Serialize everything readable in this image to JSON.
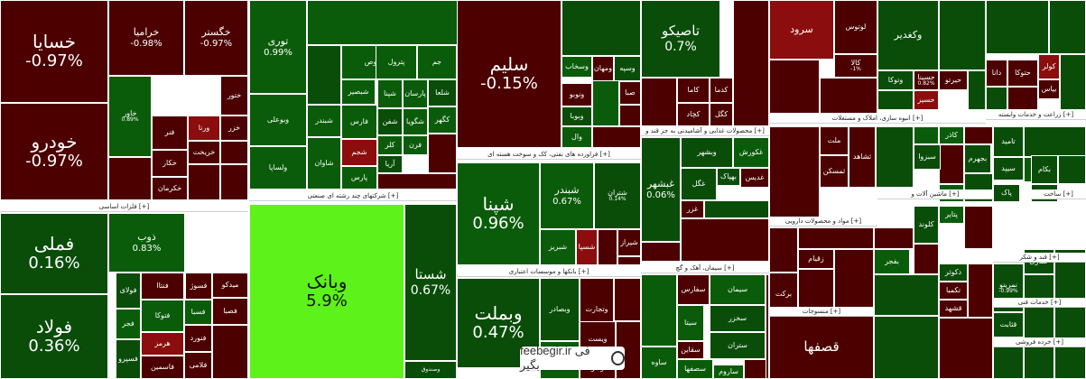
{
  "colors": {
    "deep_red": "#4c0000",
    "red": "#6b0d0d",
    "bright_red": "#8b0d0d",
    "green": "#0a5c0a",
    "dark_green": "#094d09",
    "bright_green": "#5cf21a"
  },
  "sectors": [
    {
      "label": "فلزات اساسی [+]"
    },
    {
      "label": "شرکتهای چند رشته ای صنعتی [+]"
    },
    {
      "label": "فراورده های نفتی، کک و سوخت هسته ای [+]"
    },
    {
      "label": "بانکها و موسسات اعتباری [+]"
    },
    {
      "label": "محصولات غذایی و آشامیدنی به جز قند و [+]"
    },
    {
      "label": "سیمان، آهک و گچ [+]"
    },
    {
      "label": "سایر [+]"
    },
    {
      "label": "انبوه سازی، املاک و مستغلات [+]"
    },
    {
      "label": "زراعت و خدمات وابسته [+]"
    },
    {
      "label": "مواد و محصولات دارویی [+]"
    },
    {
      "label": "ماشین آلات و [+]"
    },
    {
      "label": "قند و شکر [+]"
    },
    {
      "label": "منسوجات [+]"
    },
    {
      "label": "خدمات فنی [+]"
    },
    {
      "label": "خرده فروشی [+]"
    },
    {
      "label": "ساخت [+]"
    }
  ],
  "tiles": [
    {
      "name": "خسایا",
      "change": "-0.97%"
    },
    {
      "name": "خودرو",
      "change": "-0.97%"
    },
    {
      "name": "خرامیا",
      "change": "-0.98%"
    },
    {
      "name": "خگستر",
      "change": "-0.97%"
    },
    {
      "name": "ختور",
      "change": ""
    },
    {
      "name": "خاور",
      "change": "0.89%"
    },
    {
      "name": "فنر",
      "change": ""
    },
    {
      "name": "ورنا",
      "change": ""
    },
    {
      "name": "خزر",
      "change": ""
    },
    {
      "name": "خکار",
      "change": ""
    },
    {
      "name": "خریخت",
      "change": ""
    },
    {
      "name": "خکرمان",
      "change": ""
    },
    {
      "name": "فملی",
      "change": "0.16%"
    },
    {
      "name": "فولاد",
      "change": "0.36%"
    },
    {
      "name": "ذوب",
      "change": "0.83%"
    },
    {
      "name": "فولای",
      "change": ""
    },
    {
      "name": "فسوژ",
      "change": ""
    },
    {
      "name": "فنتاا",
      "change": ""
    },
    {
      "name": "میدکو",
      "change": ""
    },
    {
      "name": "فجر",
      "change": ""
    },
    {
      "name": "فتوکا",
      "change": ""
    },
    {
      "name": "فسبا",
      "change": ""
    },
    {
      "name": "فصبا",
      "change": ""
    },
    {
      "name": "هرمز",
      "change": ""
    },
    {
      "name": "فسپرو",
      "change": ""
    },
    {
      "name": "فنورد",
      "change": ""
    },
    {
      "name": "فاسمین",
      "change": ""
    },
    {
      "name": "فلامی",
      "change": ""
    },
    {
      "name": "وبانک",
      "change": "5.9%"
    },
    {
      "name": "شستا",
      "change": "0.67%"
    },
    {
      "name": "وصندوق",
      "change": ""
    },
    {
      "name": "توری",
      "change": "0.99%"
    },
    {
      "name": "وبوعلی",
      "change": ""
    },
    {
      "name": "ولساپا",
      "change": ""
    },
    {
      "name": "شدوص",
      "change": ""
    },
    {
      "name": "پترول",
      "change": ""
    },
    {
      "name": "جم",
      "change": ""
    },
    {
      "name": "شپنا",
      "change": ""
    },
    {
      "name": "شبصیر",
      "change": ""
    },
    {
      "name": "پارسان",
      "change": ""
    },
    {
      "name": "شلعا",
      "change": ""
    },
    {
      "name": "فارس",
      "change": ""
    },
    {
      "name": "شفن",
      "change": ""
    },
    {
      "name": "شگویا",
      "change": ""
    },
    {
      "name": "کگهر",
      "change": ""
    },
    {
      "name": "شبندر",
      "change": ""
    },
    {
      "name": "کلر",
      "change": ""
    },
    {
      "name": "فرن",
      "change": ""
    },
    {
      "name": "شجم",
      "change": ""
    },
    {
      "name": "آریا",
      "change": ""
    },
    {
      "name": "پارس",
      "change": ""
    },
    {
      "name": "شاوان",
      "change": ""
    },
    {
      "name": "سلیم",
      "change": "-0.15%"
    },
    {
      "name": "وسپه",
      "change": ""
    },
    {
      "name": "وسخاب",
      "change": ""
    },
    {
      "name": "ومهان",
      "change": ""
    },
    {
      "name": "صبا",
      "change": ""
    },
    {
      "name": "ونوبو",
      "change": ""
    },
    {
      "name": "وبوبا",
      "change": ""
    },
    {
      "name": "وال",
      "change": ""
    },
    {
      "name": "تاصیکو",
      "change": "0.7%"
    },
    {
      "name": "کاما",
      "change": ""
    },
    {
      "name": "کدما",
      "change": ""
    },
    {
      "name": "کچاد",
      "change": ""
    },
    {
      "name": "کگل",
      "change": ""
    },
    {
      "name": "شپنا",
      "change": "0.96%"
    },
    {
      "name": "شبندر",
      "change": "0.67%"
    },
    {
      "name": "شتران",
      "change": "0.14%"
    },
    {
      "name": "شیراز",
      "change": ""
    },
    {
      "name": "شبریز",
      "change": ""
    },
    {
      "name": "شسپا",
      "change": ""
    },
    {
      "name": "وبملت",
      "change": "0.47%"
    },
    {
      "name": "وبصادر",
      "change": ""
    },
    {
      "name": "وتجارت",
      "change": ""
    },
    {
      "name": "ویست",
      "change": ""
    },
    {
      "name": "وکار",
      "change": ""
    },
    {
      "name": "غبشهر",
      "change": "0.06%"
    },
    {
      "name": "غکورش",
      "change": ""
    },
    {
      "name": "وبشهر",
      "change": ""
    },
    {
      "name": "غگل",
      "change": ""
    },
    {
      "name": "بهپاک",
      "change": ""
    },
    {
      "name": "غدیس",
      "change": ""
    },
    {
      "name": "غزر",
      "change": ""
    },
    {
      "name": "سیمان",
      "change": ""
    },
    {
      "name": "سفارس",
      "change": ""
    },
    {
      "name": "سخزر",
      "change": ""
    },
    {
      "name": "سیتا",
      "change": ""
    },
    {
      "name": "سقاین",
      "change": ""
    },
    {
      "name": "ساوه",
      "change": ""
    },
    {
      "name": "سصفها",
      "change": ""
    },
    {
      "name": "ساروم",
      "change": ""
    },
    {
      "name": "ستران",
      "change": ""
    },
    {
      "name": "سرود",
      "change": ""
    },
    {
      "name": "کالا",
      "change": "-1%"
    },
    {
      "name": "لوتوس",
      "change": ""
    },
    {
      "name": "وکغدیر",
      "change": ""
    },
    {
      "name": "حسینا",
      "change": "0.82%"
    },
    {
      "name": "وتوکا",
      "change": ""
    },
    {
      "name": "حیرتو",
      "change": ""
    },
    {
      "name": "حسیر",
      "change": ""
    },
    {
      "name": "حتوکا",
      "change": ""
    },
    {
      "name": "کولر",
      "change": ""
    },
    {
      "name": "دانا",
      "change": ""
    },
    {
      "name": "بیاس",
      "change": ""
    },
    {
      "name": "ملت",
      "change": ""
    },
    {
      "name": "ثمسکن",
      "change": ""
    },
    {
      "name": "ثشاهد",
      "change": ""
    },
    {
      "name": "تامید",
      "change": ""
    },
    {
      "name": "سیپد",
      "change": ""
    },
    {
      "name": "زبینا",
      "change": ""
    },
    {
      "name": "زقیام",
      "change": ""
    },
    {
      "name": "برکت",
      "change": ""
    },
    {
      "name": "دکوثر",
      "change": ""
    },
    {
      "name": "تکمبا",
      "change": ""
    },
    {
      "name": "قشهد",
      "change": ""
    },
    {
      "name": "قصفها",
      "change": ""
    },
    {
      "name": "قثابت",
      "change": ""
    },
    {
      "name": "نمرینو",
      "change": "-0.99%"
    },
    {
      "name": "حفاری",
      "change": ""
    },
    {
      "name": "کلوند",
      "change": ""
    },
    {
      "name": "پتایر",
      "change": ""
    },
    {
      "name": "بکام",
      "change": ""
    },
    {
      "name": "بنیرو",
      "change": ""
    },
    {
      "name": "بجهرم",
      "change": ""
    },
    {
      "name": "بفجر",
      "change": ""
    },
    {
      "name": "شیراز",
      "change": ""
    },
    {
      "name": "پاک",
      "change": ""
    },
    {
      "name": "سبزوا",
      "change": ""
    },
    {
      "name": "کاذر",
      "change": ""
    },
    {
      "name": "زفکا",
      "change": ""
    },
    {
      "name": "تلیسه",
      "change": ""
    },
    {
      "name": "آپ",
      "change": ""
    }
  ],
  "watermark": {
    "text": "feebegir.ir فی بگیر",
    "logo_icon": "bolt-logo-icon"
  }
}
